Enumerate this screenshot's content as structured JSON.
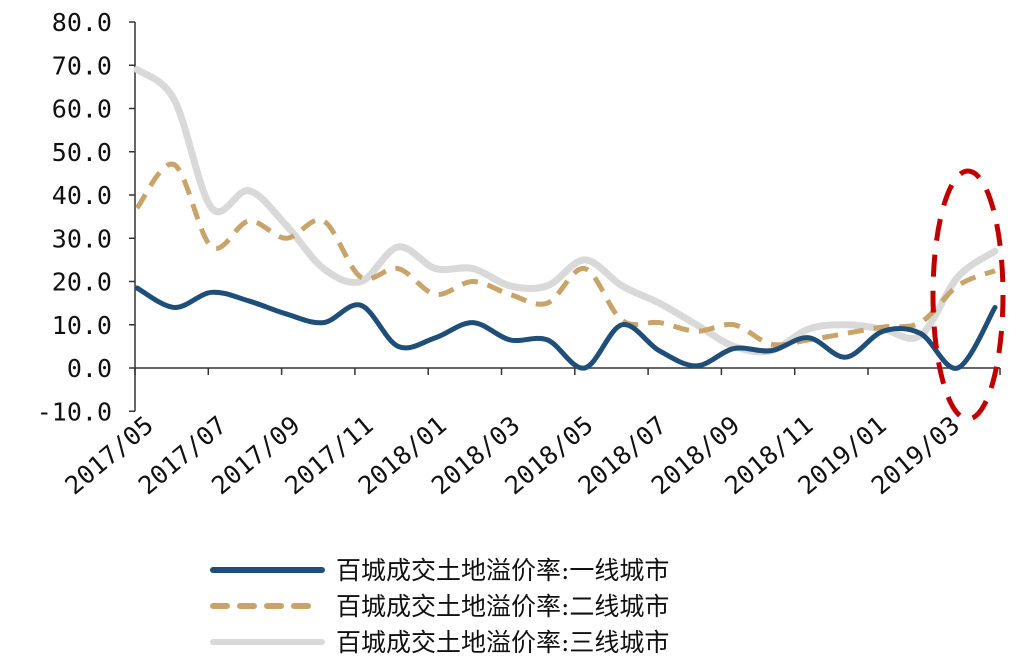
{
  "chart_data": {
    "type": "line",
    "title": "",
    "xlabel": "",
    "ylabel": "",
    "ylim": [
      -10,
      80
    ],
    "y_ticks": [
      "80.0",
      "70.0",
      "60.0",
      "50.0",
      "40.0",
      "30.0",
      "20.0",
      "10.0",
      "0.0",
      "-10.0"
    ],
    "y_tick_values": [
      80,
      70,
      60,
      50,
      40,
      30,
      20,
      10,
      0,
      -10
    ],
    "grid": false,
    "legend_position": "bottom",
    "x": [
      "2017/05",
      "2017/06",
      "2017/07",
      "2017/08",
      "2017/09",
      "2017/10",
      "2017/11",
      "2017/12",
      "2018/01",
      "2018/02",
      "2018/03",
      "2018/04",
      "2018/05",
      "2018/06",
      "2018/07",
      "2018/08",
      "2018/09",
      "2018/10",
      "2018/11",
      "2018/12",
      "2019/01",
      "2019/02",
      "2019/03",
      "2019/04"
    ],
    "x_tick_labels": [
      "2017/05",
      "2017/07",
      "2017/09",
      "2017/11",
      "2018/01",
      "2018/03",
      "2018/05",
      "2018/07",
      "2018/09",
      "2018/11",
      "2019/01",
      "2019/03"
    ],
    "series": [
      {
        "name": "百城成交土地溢价率:一线城市",
        "color": "#1f4e79",
        "style": "solid",
        "values": [
          18.5,
          14,
          17.5,
          15.5,
          12.5,
          10.5,
          14.5,
          5,
          7,
          10.5,
          6.5,
          6.5,
          0,
          10,
          4,
          0.5,
          4.5,
          4,
          7,
          2.5,
          8.5,
          8,
          0,
          14
        ]
      },
      {
        "name": "百城成交土地溢价率:二线城市",
        "color": "#c8a36a",
        "style": "dashed",
        "values": [
          37,
          47,
          28,
          34,
          30,
          34,
          21,
          23,
          17,
          20,
          17,
          15,
          23,
          11,
          10.5,
          8.5,
          10,
          5.5,
          6.5,
          8,
          9.5,
          10.5,
          19,
          22.5
        ]
      },
      {
        "name": "百城成交土地溢价率:三线城市",
        "color": "#d9d9d9",
        "style": "solid",
        "values": [
          69,
          62,
          37,
          41,
          33,
          23,
          20,
          28,
          23,
          23,
          19,
          19,
          25,
          19,
          15,
          10,
          5,
          4,
          9,
          10,
          9,
          7.5,
          21,
          27
        ]
      }
    ],
    "annotations": [
      {
        "type": "dashed-ellipse",
        "color": "#c00000",
        "highlight_range": [
          "2019/03",
          "2019/04"
        ]
      }
    ]
  }
}
